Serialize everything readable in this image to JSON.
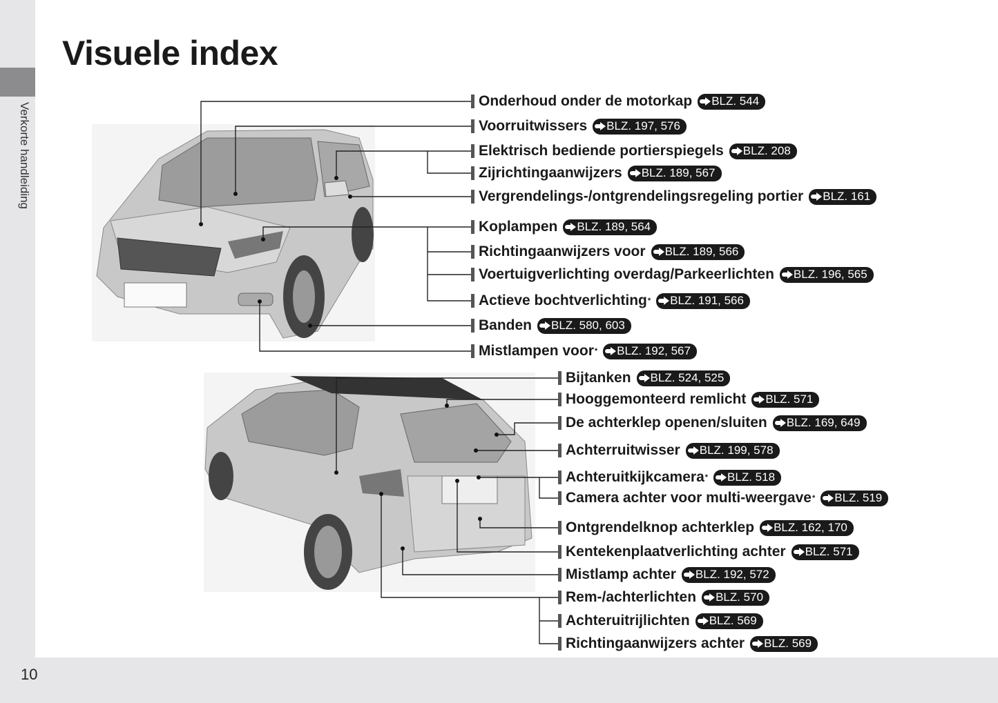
{
  "title": "Visuele index",
  "sidebar_label": "Verkorte handleiding",
  "page_number": "10",
  "ref_prefix": "BLZ.",
  "front_items": [
    {
      "label": "Onderhoud onder de motorkap",
      "asterisk": false,
      "ref": "BLZ. 544"
    },
    {
      "label": "Voorruitwissers",
      "asterisk": false,
      "ref": "BLZ. 197, 576"
    },
    {
      "label": "Elektrisch bediende portierspiegels",
      "asterisk": false,
      "ref": "BLZ. 208"
    },
    {
      "label": "Zijrichtingaanwijzers",
      "asterisk": false,
      "ref": "BLZ. 189, 567"
    },
    {
      "label": "Vergrendelings-/ontgrendelingsregeling portier",
      "asterisk": false,
      "ref": "BLZ. 161"
    },
    {
      "label": "Koplampen",
      "asterisk": false,
      "ref": "BLZ. 189, 564"
    },
    {
      "label": "Richtingaanwijzers voor",
      "asterisk": false,
      "ref": "BLZ. 189, 566"
    },
    {
      "label": "Voertuigverlichting overdag/Parkeerlichten",
      "asterisk": false,
      "ref": "BLZ. 196, 565"
    },
    {
      "label": "Actieve bochtverlichting",
      "asterisk": true,
      "ref": "BLZ. 191, 566"
    },
    {
      "label": "Banden",
      "asterisk": false,
      "ref": "BLZ. 580, 603"
    },
    {
      "label": "Mistlampen voor",
      "asterisk": true,
      "ref": "BLZ. 192, 567"
    }
  ],
  "rear_items": [
    {
      "label": "Bijtanken",
      "asterisk": false,
      "ref": "BLZ. 524, 525"
    },
    {
      "label": "Hooggemonteerd remlicht",
      "asterisk": false,
      "ref": "BLZ. 571"
    },
    {
      "label": "De achterklep openen/sluiten",
      "asterisk": false,
      "ref": "BLZ. 169, 649"
    },
    {
      "label": "Achterruitwisser",
      "asterisk": false,
      "ref": "BLZ. 199, 578"
    },
    {
      "label": "Achteruitkijkcamera",
      "asterisk": true,
      "ref": "BLZ. 518"
    },
    {
      "label": "Camera achter voor multi-weergave",
      "asterisk": true,
      "ref": "BLZ. 519"
    },
    {
      "label": "Ontgrendelknop achterklep",
      "asterisk": false,
      "ref": "BLZ. 162, 170"
    },
    {
      "label": "Kentekenplaatverlichting achter",
      "asterisk": false,
      "ref": "BLZ. 571"
    },
    {
      "label": "Mistlamp achter",
      "asterisk": false,
      "ref": "BLZ. 192, 572"
    },
    {
      "label": "Rem-/achterlichten",
      "asterisk": false,
      "ref": "BLZ. 570"
    },
    {
      "label": "Achteruitrijlichten",
      "asterisk": false,
      "ref": "BLZ. 569"
    },
    {
      "label": "Richtingaanwijzers achter",
      "asterisk": false,
      "ref": "BLZ. 569"
    }
  ],
  "colors": {
    "badge": "#1a1a1a",
    "sidebar": "#e6e6e8",
    "sidebar_tab": "#8c8c8e"
  },
  "icons": {
    "ref_arrow": "arrow-right-icon"
  }
}
